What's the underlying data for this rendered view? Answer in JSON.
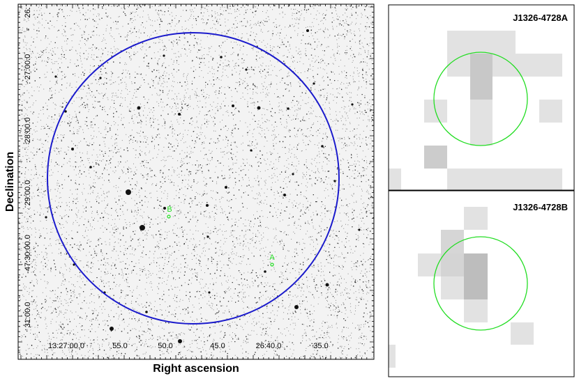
{
  "main_image": {
    "xlabel": "Right ascension",
    "ylabel": "Declination",
    "ra_ticks": [
      "13:27:00.0",
      "55.0",
      "50.0",
      "45.0",
      "26:40.0",
      "35.0"
    ],
    "dec_ticks": [
      "26:",
      "27:00.0",
      "28:00.0",
      "29:00.0",
      "-47:30:00.0",
      "31:00.0"
    ],
    "sources": [
      {
        "label": "B"
      },
      {
        "label": "A"
      }
    ],
    "circle_color": "#1a1acc",
    "source_color": "#22dd22"
  },
  "panels": [
    {
      "title": "J1326-4728A"
    },
    {
      "title": "J1326-4728B"
    }
  ]
}
